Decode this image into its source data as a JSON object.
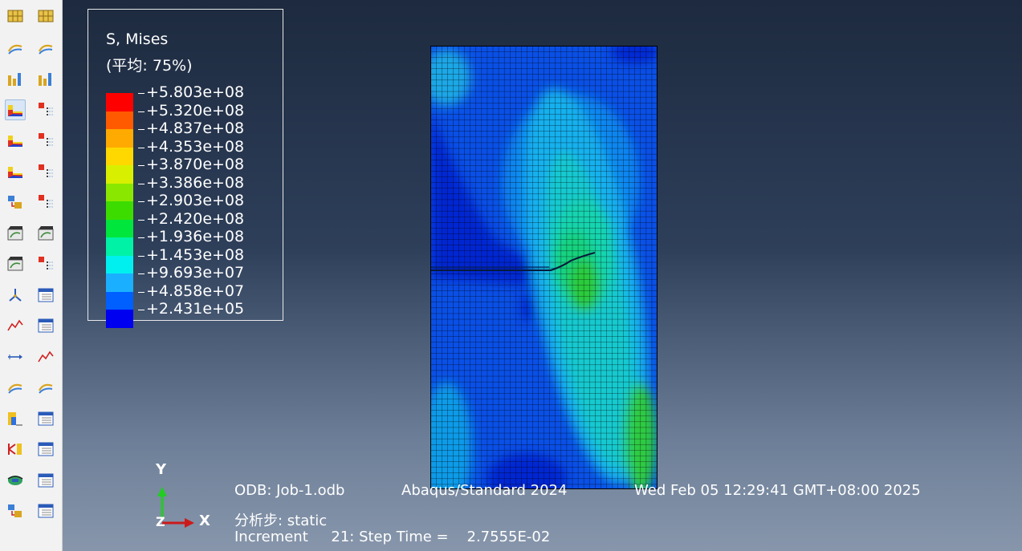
{
  "toolbox": {
    "rows": [
      [
        "numbered-grid-icon",
        "numbered-grid-alt-icon"
      ],
      [
        "arrow-strip-icon",
        "layer-stack-icon"
      ],
      [
        "deformed-bars-icon",
        "deformed-bars-alt-icon"
      ],
      [
        "contour-plot-icon",
        "contour-options-icon"
      ],
      [
        "contour-deformed-icon",
        "deformed-options-icon"
      ],
      [
        "contour-undeformed-icon",
        "undeformed-options-icon"
      ],
      [
        "superimpose-icon",
        "superimpose-options-icon"
      ],
      [
        "animate-scale-icon",
        "animate-time-icon"
      ],
      [
        "animate-history-icon",
        "animation-options-icon"
      ],
      [
        "triad-icon",
        "view-table-icon"
      ],
      [
        "xy-data-icon",
        "xy-table-icon"
      ],
      [
        "path-icon",
        "xy-plot-icon"
      ],
      [
        "stream-icon",
        "stream-alt-icon"
      ],
      [
        "display-group-icon",
        "display-table-icon"
      ],
      [
        "free-body-icon",
        "free-body-table-icon"
      ],
      [
        "cut-view-icon",
        "cut-table-icon"
      ],
      [
        "transform-icon",
        "transform-table-icon"
      ]
    ],
    "active": "contour-plot-icon"
  },
  "legend": {
    "title": "S, Mises",
    "subtitle": "(平均: 75%)",
    "entries": [
      "+5.803e+08",
      "+5.320e+08",
      "+4.837e+08",
      "+4.353e+08",
      "+3.870e+08",
      "+3.386e+08",
      "+2.903e+08",
      "+2.420e+08",
      "+1.936e+08",
      "+1.453e+08",
      "+9.693e+07",
      "+4.858e+07",
      "+2.431e+05"
    ],
    "colors": [
      "#ff0000",
      "#ff5a00",
      "#ffaa00",
      "#ffd800",
      "#d8f000",
      "#8ae800",
      "#3cdc00",
      "#00e63c",
      "#00f2a6",
      "#00f0f0",
      "#1ab0ff",
      "#0060ff",
      "#0000f0"
    ]
  },
  "triad": {
    "y": "Y",
    "z": "Z",
    "x": "X"
  },
  "info": {
    "odb_label": "ODB: Job-1.odb",
    "solver": "Abaqus/Standard 2024",
    "timestamp": "Wed Feb 05 12:29:41 GMT+08:00 2025",
    "step": "分析步: static",
    "increment": "Increment     21: Step Time =    2.7555E-02"
  }
}
